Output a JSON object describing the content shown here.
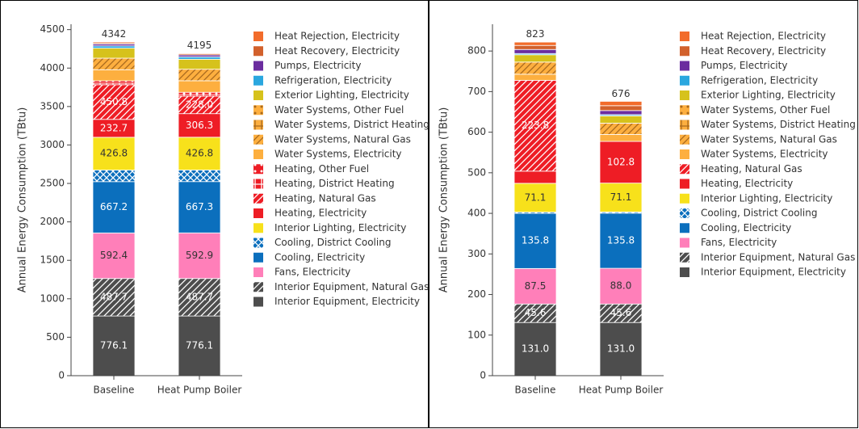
{
  "chart_data": [
    {
      "type": "bar",
      "stacked": true,
      "ylabel": "Annual Energy Consumption (TBtu)",
      "categories": [
        "Baseline",
        "Heat Pump Boiler"
      ],
      "totals": [
        4342,
        4195
      ],
      "ylim": [
        0,
        4570
      ],
      "yticks": [
        0,
        500,
        1000,
        1500,
        2000,
        2500,
        3000,
        3500,
        4000,
        4500
      ],
      "series": [
        {
          "name": "Interior Equipment, Electricity",
          "color": "#4d4d4d",
          "values": [
            776.1,
            776.1
          ],
          "value_labels": [
            "776.1",
            "776.1"
          ]
        },
        {
          "name": "Interior Equipment, Natural Gas",
          "color": "#4d4d4d",
          "pattern": "/",
          "pattern_color": "#ffffff",
          "values": [
            487.7,
            487.7
          ],
          "value_labels": [
            "487.7",
            "487.7"
          ]
        },
        {
          "name": "Fans, Electricity",
          "color": "#ff7fb9",
          "values": [
            592.4,
            592.9
          ],
          "value_labels": [
            "592.4",
            "592.9"
          ]
        },
        {
          "name": "Cooling, Electricity",
          "color": "#0b6fbd",
          "values": [
            667.2,
            667.3
          ],
          "value_labels": [
            "667.2",
            "667.3"
          ]
        },
        {
          "name": "Cooling, District Cooling",
          "color": "#0b6fbd",
          "pattern": "x",
          "pattern_color": "#ffffff",
          "values": [
            150,
            150
          ]
        },
        {
          "name": "Interior Lighting, Electricity",
          "color": "#f7e11b",
          "values": [
            426.8,
            426.8
          ],
          "value_labels": [
            "426.8",
            "426.8"
          ]
        },
        {
          "name": "Heating, Electricity",
          "color": "#ee1d25",
          "values": [
            232.7,
            306.3
          ],
          "value_labels": [
            "232.7",
            "306.3"
          ]
        },
        {
          "name": "Heating, Natural Gas",
          "color": "#ee1d25",
          "pattern": "/",
          "pattern_color": "#ffffff",
          "values": [
            450.8,
            228.0
          ],
          "value_labels": [
            "450.8",
            "228.0"
          ]
        },
        {
          "name": "Heating, District Heating",
          "color": "#ee1d25",
          "pattern": "+",
          "pattern_color": "#ffffff",
          "values": [
            20,
            20
          ]
        },
        {
          "name": "Heating, Other Fuel",
          "color": "#ee1d25",
          "pattern": ".",
          "pattern_color": "#ffffff",
          "values": [
            30,
            30
          ]
        },
        {
          "name": "Water Systems, Electricity",
          "color": "#fdaf3f",
          "values": [
            145,
            150
          ]
        },
        {
          "name": "Water Systems, Natural Gas",
          "color": "#fdaf3f",
          "pattern": "/",
          "pattern_color": "#a8691e",
          "values": [
            150,
            150
          ]
        },
        {
          "name": "Water Systems, District Heating",
          "color": "#fdaf3f",
          "pattern": "+",
          "pattern_color": "#a8691e",
          "values": [
            0,
            0
          ]
        },
        {
          "name": "Water Systems, Other Fuel",
          "color": "#fdaf3f",
          "pattern": ".",
          "pattern_color": "#a8691e",
          "values": [
            0,
            0
          ]
        },
        {
          "name": "Exterior Lighting, Electricity",
          "color": "#d6c21c",
          "values": [
            130,
            130
          ]
        },
        {
          "name": "Refrigeration, Electricity",
          "color": "#2aa7df",
          "values": [
            30,
            30
          ]
        },
        {
          "name": "Pumps, Electricity",
          "color": "#6b2d9f",
          "values": [
            25,
            25
          ]
        },
        {
          "name": "Heat Recovery, Electricity",
          "color": "#d2612c",
          "values": [
            15,
            15
          ]
        },
        {
          "name": "Heat Rejection, Electricity",
          "color": "#f26c2b",
          "values": [
            13.3,
            10
          ]
        }
      ]
    },
    {
      "type": "bar",
      "stacked": true,
      "ylabel": "Annual Energy Consumption (TBtu)",
      "categories": [
        "Baseline",
        "Heat Pump Boiler"
      ],
      "totals": [
        823,
        676
      ],
      "ylim": [
        0,
        866
      ],
      "yticks": [
        0,
        100,
        200,
        300,
        400,
        500,
        600,
        700,
        800
      ],
      "series": [
        {
          "name": "Interior Equipment, Electricity",
          "color": "#4d4d4d",
          "values": [
            131.0,
            131.0
          ],
          "value_labels": [
            "131.0",
            "131.0"
          ]
        },
        {
          "name": "Interior Equipment, Natural Gas",
          "color": "#4d4d4d",
          "pattern": "/",
          "pattern_color": "#ffffff",
          "values": [
            45.6,
            45.6
          ],
          "value_labels": [
            "45.6",
            "45.6"
          ]
        },
        {
          "name": "Fans, Electricity",
          "color": "#ff7fb9",
          "values": [
            87.5,
            88.0
          ],
          "value_labels": [
            "87.5",
            "88.0"
          ]
        },
        {
          "name": "Cooling, Electricity",
          "color": "#0b6fbd",
          "values": [
            135.8,
            135.8
          ],
          "value_labels": [
            "135.8",
            "135.8"
          ]
        },
        {
          "name": "Cooling, District Cooling",
          "color": "#0b6fbd",
          "pattern": "x",
          "pattern_color": "#ffffff",
          "values": [
            3,
            3
          ]
        },
        {
          "name": "Interior Lighting, Electricity",
          "color": "#f7e11b",
          "values": [
            71.1,
            71.1
          ],
          "value_labels": [
            "71.1",
            "71.1"
          ]
        },
        {
          "name": "Heating, Electricity",
          "color": "#ee1d25",
          "values": [
            30,
            102.8
          ],
          "value_labels": [
            null,
            "102.8"
          ]
        },
        {
          "name": "Heating, Natural Gas",
          "color": "#ee1d25",
          "pattern": "/",
          "pattern_color": "#ffffff",
          "values": [
            223.8,
            0
          ],
          "value_labels": [
            "223.8",
            null
          ]
        },
        {
          "name": "Water Systems, Electricity",
          "color": "#fdaf3f",
          "values": [
            15,
            17
          ]
        },
        {
          "name": "Water Systems, Natural Gas",
          "color": "#fdaf3f",
          "pattern": "/",
          "pattern_color": "#a8691e",
          "values": [
            30,
            28
          ]
        },
        {
          "name": "Water Systems, District Heating",
          "color": "#fdaf3f",
          "pattern": "+",
          "pattern_color": "#a8691e",
          "values": [
            0,
            0
          ]
        },
        {
          "name": "Water Systems, Other Fuel",
          "color": "#fdaf3f",
          "pattern": ".",
          "pattern_color": "#a8691e",
          "values": [
            0,
            0
          ]
        },
        {
          "name": "Exterior Lighting, Electricity",
          "color": "#d6c21c",
          "values": [
            18,
            18
          ]
        },
        {
          "name": "Refrigeration, Electricity",
          "color": "#2aa7df",
          "values": [
            3,
            3
          ]
        },
        {
          "name": "Pumps, Electricity",
          "color": "#6b2d9f",
          "values": [
            10,
            10
          ]
        },
        {
          "name": "Heat Recovery, Electricity",
          "color": "#d2612c",
          "values": [
            10,
            12
          ]
        },
        {
          "name": "Heat Rejection, Electricity",
          "color": "#f26c2b",
          "values": [
            8.2,
            10.7
          ]
        }
      ]
    }
  ]
}
